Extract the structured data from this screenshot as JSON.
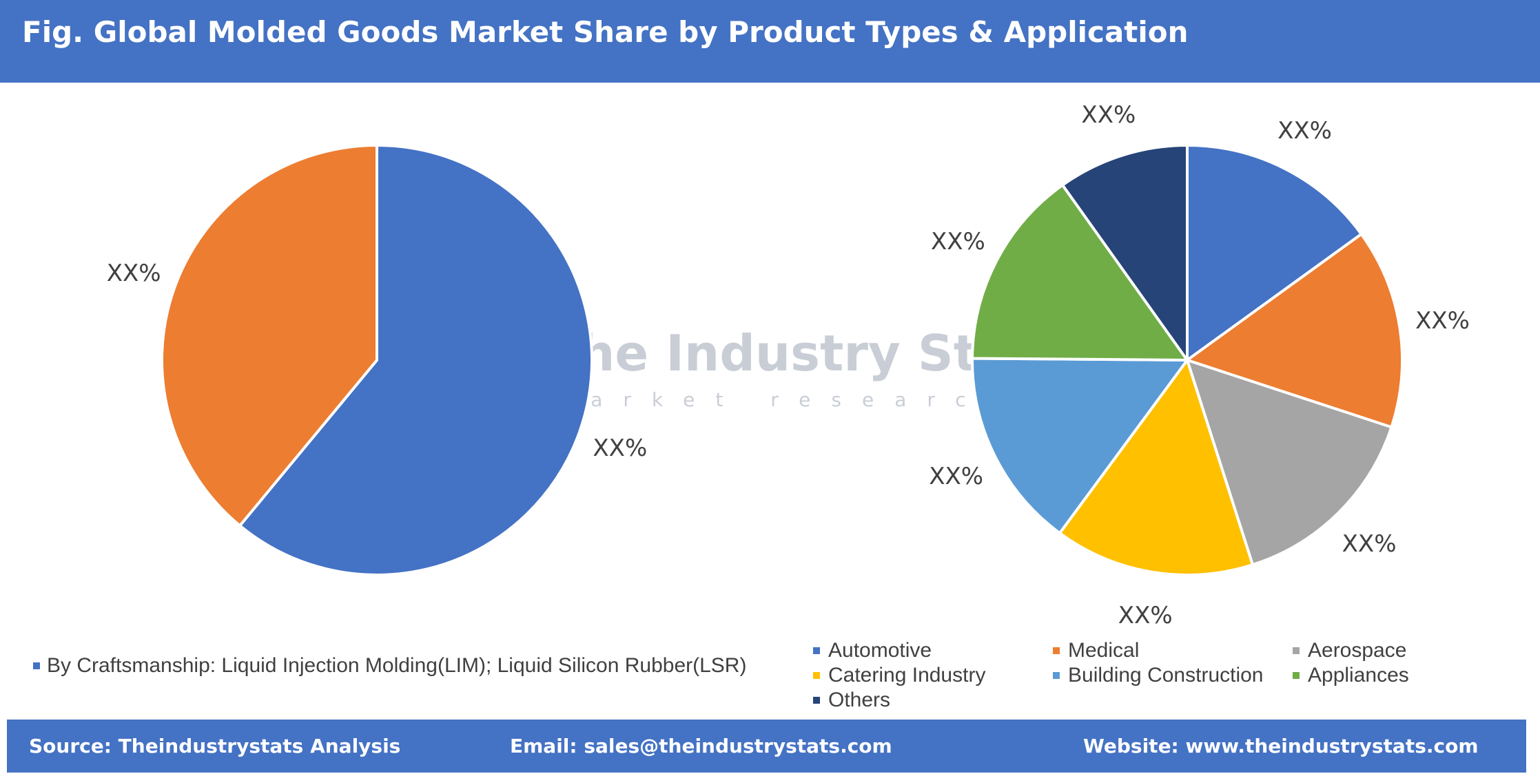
{
  "header": {
    "title": "Fig. Global Molded Goods Market Share by Product Types & Application"
  },
  "watermark": {
    "name": "The Industry Stats",
    "tagline": "market research"
  },
  "chart_data": [
    {
      "type": "pie",
      "categories": [
        "By Craftsmanship: Liquid Injection Molding(LIM); Liquid Silicon Rubber(LSR)",
        ""
      ],
      "values": [
        61,
        39
      ],
      "labels": [
        "XX%",
        "XX%"
      ],
      "colors": [
        "#4472c4",
        "#ed7d31"
      ],
      "start_angle_deg": 0,
      "legend_position": "bottom"
    },
    {
      "type": "pie",
      "categories": [
        "Automotive",
        "Medical",
        "Aerospace",
        "Catering Industry",
        "Building Construction",
        "Appliances",
        "Others"
      ],
      "values": [
        14.5,
        14.5,
        14.5,
        14.5,
        14.5,
        14.5,
        9.5
      ],
      "labels": [
        "XX%",
        "XX%",
        "XX%",
        "XX%",
        "XX%",
        "XX%",
        "XX%"
      ],
      "colors": [
        "#4472c4",
        "#ed7d31",
        "#a5a5a5",
        "#ffc000",
        "#5b9bd5",
        "#70ad47",
        "#264478"
      ],
      "start_angle_deg": 0,
      "legend_position": "bottom"
    }
  ],
  "legend_left": {
    "label": "By Craftsmanship: Liquid Injection Molding(LIM); Liquid Silicon Rubber(LSR)",
    "color": "#4472c4"
  },
  "legend_right": [
    {
      "label": "Automotive",
      "color": "#4472c4"
    },
    {
      "label": "Medical",
      "color": "#ed7d31"
    },
    {
      "label": "Aerospace",
      "color": "#a5a5a5"
    },
    {
      "label": "Catering Industry",
      "color": "#ffc000"
    },
    {
      "label": "Building Construction",
      "color": "#5b9bd5"
    },
    {
      "label": "Appliances",
      "color": "#70ad47"
    },
    {
      "label": "Others",
      "color": "#264478"
    }
  ],
  "footer": {
    "source": "Source: Theindustrystats Analysis",
    "email": "Email: sales@theindustrystats.com",
    "website": "Website: www.theindustrystats.com"
  }
}
